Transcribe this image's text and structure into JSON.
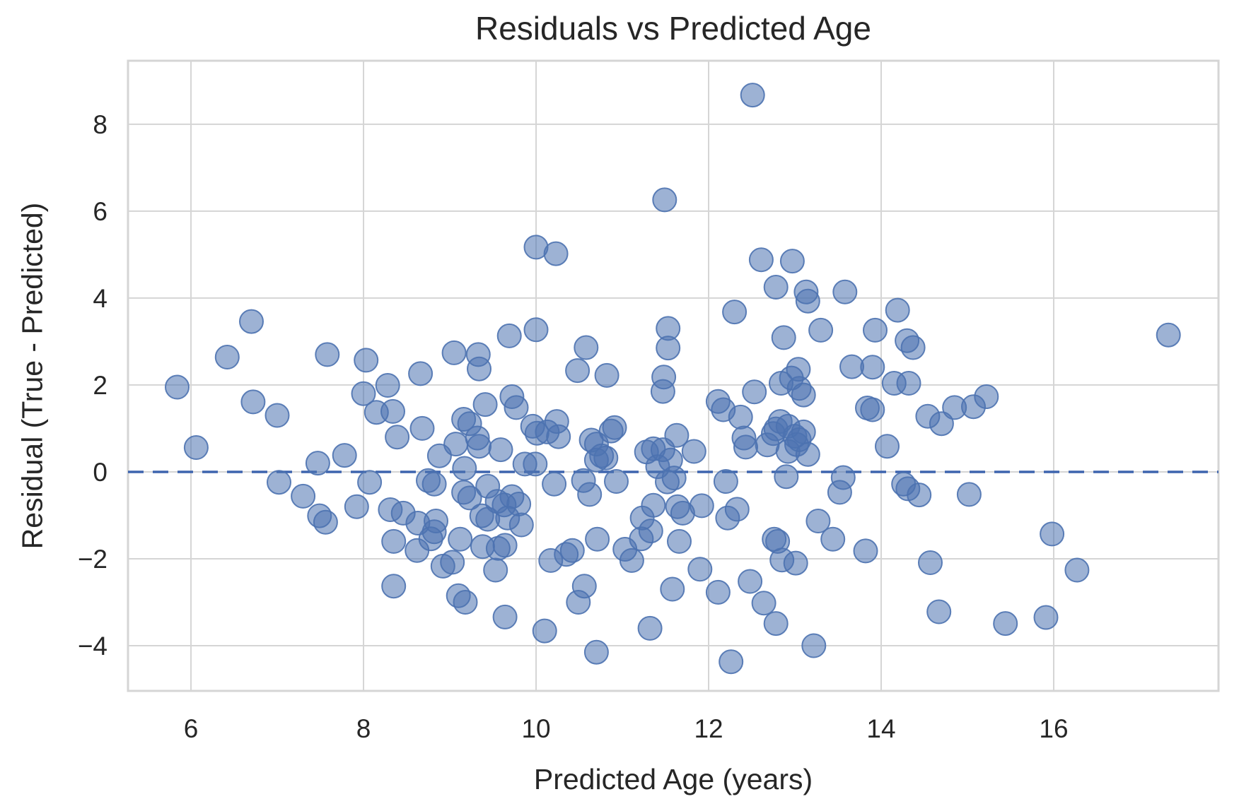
{
  "chart_data": {
    "type": "scatter",
    "title": "Residuals vs Predicted Age",
    "xlabel": "Predicted Age (years)",
    "ylabel": "Residual (True - Predicted)",
    "xlim": [
      5.27,
      17.91
    ],
    "ylim": [
      -5.04,
      9.46
    ],
    "x_ticks": [
      6,
      8,
      10,
      12,
      14,
      16
    ],
    "y_ticks": [
      -4,
      -2,
      0,
      2,
      4,
      6,
      8
    ],
    "grid": true,
    "legend": "none",
    "reference_line_y": 0,
    "colors": {
      "marker": "#4C72B0",
      "marker_fill_opacity": 0.55,
      "marker_edge_opacity": 0.9,
      "reference_line": "#3D64AE",
      "grid": "#D5D5D5",
      "text": "#262626",
      "background": "#FFFFFF"
    },
    "points": [
      [
        5.84,
        1.95
      ],
      [
        6.06,
        0.56
      ],
      [
        6.42,
        2.64
      ],
      [
        6.7,
        3.46
      ],
      [
        6.72,
        1.61
      ],
      [
        7.0,
        1.3
      ],
      [
        7.02,
        -0.24
      ],
      [
        7.3,
        -0.56
      ],
      [
        7.47,
        0.2
      ],
      [
        7.49,
        -1.01
      ],
      [
        7.56,
        -1.16
      ],
      [
        7.58,
        2.7
      ],
      [
        7.78,
        0.38
      ],
      [
        7.92,
        -0.8
      ],
      [
        8.03,
        2.57
      ],
      [
        8.0,
        1.8
      ],
      [
        8.28,
        1.99
      ],
      [
        8.15,
        1.37
      ],
      [
        8.34,
        1.39
      ],
      [
        8.39,
        0.8
      ],
      [
        8.07,
        -0.24
      ],
      [
        8.31,
        -0.87
      ],
      [
        8.46,
        -0.95
      ],
      [
        8.35,
        -1.6
      ],
      [
        8.35,
        -2.63
      ],
      [
        8.66,
        2.26
      ],
      [
        9.05,
        2.74
      ],
      [
        9.33,
        2.7
      ],
      [
        9.34,
        2.37
      ],
      [
        9.69,
        3.13
      ],
      [
        10.0,
        3.27
      ],
      [
        10.0,
        5.17
      ],
      [
        10.23,
        5.02
      ],
      [
        11.49,
        6.26
      ],
      [
        10.58,
        2.86
      ],
      [
        10.48,
        2.33
      ],
      [
        10.82,
        2.22
      ],
      [
        11.48,
        2.18
      ],
      [
        11.53,
        3.3
      ],
      [
        11.53,
        2.85
      ],
      [
        11.47,
        1.85
      ],
      [
        9.41,
        1.55
      ],
      [
        9.72,
        1.73
      ],
      [
        9.77,
        1.48
      ],
      [
        9.16,
        1.21
      ],
      [
        9.23,
        1.11
      ],
      [
        8.68,
        1.0
      ],
      [
        9.07,
        0.64
      ],
      [
        9.32,
        0.78
      ],
      [
        9.34,
        0.59
      ],
      [
        9.59,
        0.51
      ],
      [
        8.88,
        0.37
      ],
      [
        9.96,
        1.05
      ],
      [
        10.01,
        0.89
      ],
      [
        10.13,
        0.92
      ],
      [
        10.24,
        1.16
      ],
      [
        10.26,
        0.81
      ],
      [
        9.87,
        0.18
      ],
      [
        9.99,
        0.18
      ],
      [
        10.64,
        0.73
      ],
      [
        10.7,
        0.64
      ],
      [
        10.76,
        0.37
      ],
      [
        10.81,
        0.32
      ],
      [
        10.7,
        0.27
      ],
      [
        10.87,
        0.94
      ],
      [
        10.91,
        1.02
      ],
      [
        11.28,
        0.46
      ],
      [
        11.36,
        0.53
      ],
      [
        11.47,
        0.51
      ],
      [
        11.56,
        0.27
      ],
      [
        11.41,
        0.12
      ],
      [
        11.6,
        -0.14
      ],
      [
        11.52,
        -0.23
      ],
      [
        11.63,
        0.84
      ],
      [
        8.75,
        -0.2
      ],
      [
        8.82,
        -0.28
      ],
      [
        9.17,
        0.08
      ],
      [
        10.21,
        -0.28
      ],
      [
        10.55,
        -0.2
      ],
      [
        10.62,
        -0.52
      ],
      [
        10.93,
        -0.22
      ],
      [
        9.16,
        -0.47
      ],
      [
        9.23,
        -0.6
      ],
      [
        9.44,
        -0.33
      ],
      [
        9.55,
        -0.68
      ],
      [
        9.63,
        -0.76
      ],
      [
        9.72,
        -0.57
      ],
      [
        9.8,
        -0.74
      ],
      [
        9.37,
        -1.01
      ],
      [
        9.44,
        -1.09
      ],
      [
        9.67,
        -1.06
      ],
      [
        9.83,
        -1.22
      ],
      [
        8.84,
        -1.13
      ],
      [
        8.63,
        -1.18
      ],
      [
        8.82,
        -1.38
      ],
      [
        8.78,
        -1.54
      ],
      [
        8.62,
        -1.81
      ],
      [
        9.12,
        -1.55
      ],
      [
        9.38,
        -1.72
      ],
      [
        9.56,
        -1.76
      ],
      [
        9.64,
        -1.69
      ],
      [
        10.17,
        -2.04
      ],
      [
        10.35,
        -1.9
      ],
      [
        10.42,
        -1.81
      ],
      [
        10.71,
        -1.55
      ],
      [
        11.03,
        -1.78
      ],
      [
        11.22,
        -1.54
      ],
      [
        11.11,
        -2.04
      ],
      [
        11.33,
        -1.36
      ],
      [
        11.23,
        -1.06
      ],
      [
        11.36,
        -0.77
      ],
      [
        8.92,
        -2.17
      ],
      [
        9.03,
        -2.08
      ],
      [
        9.53,
        -2.26
      ],
      [
        10.56,
        -2.63
      ],
      [
        10.49,
        -3.0
      ],
      [
        9.1,
        -2.85
      ],
      [
        9.18,
        -3.0
      ],
      [
        9.64,
        -3.34
      ],
      [
        10.1,
        -3.66
      ],
      [
        10.7,
        -4.15
      ],
      [
        11.32,
        -3.6
      ],
      [
        11.58,
        -2.7
      ],
      [
        11.66,
        -1.6
      ],
      [
        11.9,
        -2.24
      ],
      [
        11.92,
        -0.78
      ],
      [
        11.64,
        -0.8
      ],
      [
        11.7,
        -0.95
      ],
      [
        12.51,
        8.67
      ],
      [
        12.61,
        4.88
      ],
      [
        12.97,
        4.85
      ],
      [
        12.78,
        4.25
      ],
      [
        13.13,
        4.14
      ],
      [
        13.15,
        3.93
      ],
      [
        13.58,
        4.14
      ],
      [
        12.3,
        3.68
      ],
      [
        14.19,
        3.72
      ],
      [
        12.87,
        3.09
      ],
      [
        13.3,
        3.26
      ],
      [
        13.93,
        3.26
      ],
      [
        14.3,
        3.02
      ],
      [
        14.37,
        2.86
      ],
      [
        13.04,
        2.36
      ],
      [
        13.66,
        2.42
      ],
      [
        13.9,
        2.41
      ],
      [
        13.05,
        1.92
      ],
      [
        13.1,
        1.77
      ],
      [
        12.84,
        2.04
      ],
      [
        12.96,
        2.16
      ],
      [
        12.53,
        1.84
      ],
      [
        14.15,
        2.04
      ],
      [
        14.32,
        2.04
      ],
      [
        14.54,
        1.28
      ],
      [
        14.7,
        1.11
      ],
      [
        12.11,
        1.62
      ],
      [
        12.17,
        1.43
      ],
      [
        12.37,
        1.26
      ],
      [
        13.84,
        1.47
      ],
      [
        13.9,
        1.43
      ],
      [
        14.07,
        0.59
      ],
      [
        12.41,
        0.78
      ],
      [
        12.43,
        0.57
      ],
      [
        12.68,
        0.62
      ],
      [
        12.75,
        0.88
      ],
      [
        12.78,
        0.99
      ],
      [
        12.83,
        1.16
      ],
      [
        12.92,
        1.05
      ],
      [
        13.0,
        0.82
      ],
      [
        13.05,
        0.74
      ],
      [
        13.1,
        0.92
      ],
      [
        13.02,
        0.63
      ],
      [
        12.92,
        0.47
      ],
      [
        13.15,
        0.4
      ],
      [
        11.83,
        0.47
      ],
      [
        12.9,
        -0.11
      ],
      [
        12.2,
        -0.22
      ],
      [
        13.56,
        -0.13
      ],
      [
        13.52,
        -0.47
      ],
      [
        14.26,
        -0.28
      ],
      [
        14.31,
        -0.39
      ],
      [
        14.44,
        -0.53
      ],
      [
        12.22,
        -1.06
      ],
      [
        12.33,
        -0.86
      ],
      [
        13.27,
        -1.13
      ],
      [
        13.44,
        -1.55
      ],
      [
        13.82,
        -1.82
      ],
      [
        12.76,
        -1.55
      ],
      [
        12.8,
        -1.6
      ],
      [
        12.85,
        -2.03
      ],
      [
        13.01,
        -2.1
      ],
      [
        12.11,
        -2.77
      ],
      [
        12.48,
        -2.52
      ],
      [
        12.64,
        -3.02
      ],
      [
        12.78,
        -3.49
      ],
      [
        13.22,
        -4.0
      ],
      [
        12.26,
        -4.37
      ],
      [
        14.57,
        -2.09
      ],
      [
        14.67,
        -3.22
      ],
      [
        17.33,
        3.15
      ],
      [
        14.85,
        1.48
      ],
      [
        15.07,
        1.5
      ],
      [
        15.22,
        1.73
      ],
      [
        15.02,
        -0.52
      ],
      [
        15.98,
        -1.43
      ],
      [
        16.27,
        -2.26
      ],
      [
        15.44,
        -3.49
      ],
      [
        15.91,
        -3.35
      ]
    ]
  }
}
